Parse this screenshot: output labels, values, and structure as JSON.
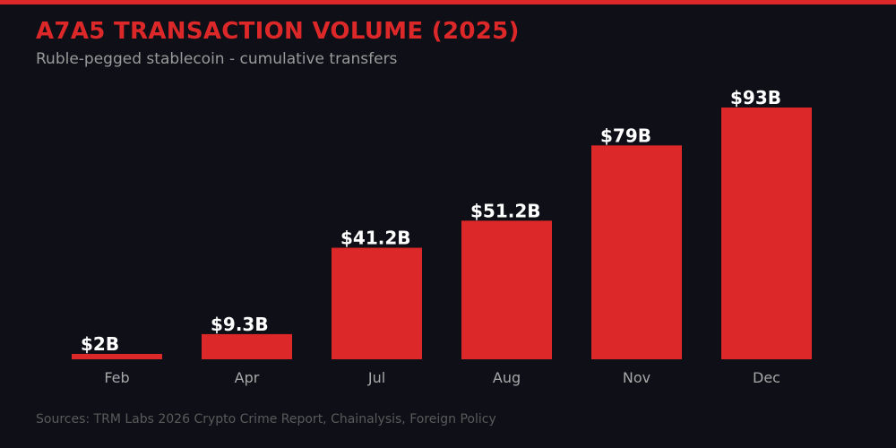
{
  "chart_data": {
    "type": "bar",
    "title": "A7A5 TRANSACTION VOLUME (2025)",
    "subtitle": "Ruble-pegged stablecoin - cumulative transfers",
    "categories": [
      "Feb",
      "Apr",
      "Jul",
      "Aug",
      "Nov",
      "Dec"
    ],
    "values": [
      2,
      9.3,
      41.2,
      51.2,
      79,
      93
    ],
    "data_labels": [
      "$2B",
      "$9.3B",
      "$41.2B",
      "$51.2B",
      "$79B",
      "$93B"
    ],
    "unit": "billion USD",
    "xlabel": "",
    "ylabel": "",
    "ylim": [
      0,
      93
    ],
    "grid": false,
    "legend": "none",
    "colors": {
      "bar": "#dc2828",
      "title": "#dc2828",
      "background": "#0e0f17"
    },
    "source": "Sources: TRM Labs 2026 Crypto Crime Report, Chainalysis, Foreign Policy"
  }
}
